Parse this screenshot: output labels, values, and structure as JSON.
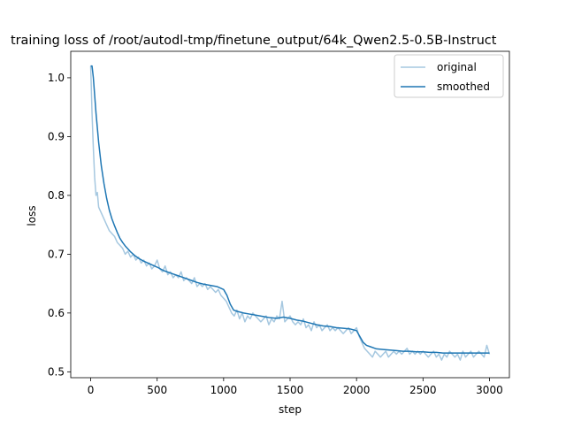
{
  "chart_data": {
    "type": "line",
    "title": "training loss of /root/autodl-tmp/finetune_output/64k_Qwen2.5-0.5B-Instruct",
    "xlabel": "step",
    "ylabel": "loss",
    "xlim": [
      -150,
      3150
    ],
    "ylim": [
      0.49,
      1.045
    ],
    "x_ticks": [
      0,
      500,
      1000,
      1500,
      2000,
      2500,
      3000
    ],
    "x_tick_labels": [
      "0",
      "500",
      "1000",
      "1500",
      "2000",
      "2500",
      "3000"
    ],
    "y_ticks": [
      0.5,
      0.6,
      0.7,
      0.8,
      0.9,
      1.0
    ],
    "y_tick_labels": [
      "0.5",
      "0.6",
      "0.7",
      "0.8",
      "0.9",
      "1.0"
    ],
    "grid": false,
    "legend_position": "top-right",
    "series": [
      {
        "name": "original",
        "color": "#a6c8e0",
        "x": [
          0,
          10,
          20,
          30,
          40,
          50,
          60,
          80,
          100,
          120,
          140,
          160,
          180,
          200,
          220,
          240,
          260,
          280,
          300,
          320,
          340,
          360,
          380,
          400,
          420,
          440,
          460,
          480,
          500,
          520,
          540,
          560,
          580,
          600,
          620,
          640,
          660,
          680,
          700,
          720,
          740,
          760,
          780,
          800,
          820,
          840,
          860,
          880,
          900,
          920,
          940,
          960,
          980,
          1000,
          1020,
          1040,
          1060,
          1080,
          1100,
          1120,
          1140,
          1160,
          1180,
          1200,
          1220,
          1240,
          1260,
          1280,
          1300,
          1320,
          1340,
          1360,
          1380,
          1400,
          1420,
          1440,
          1460,
          1480,
          1500,
          1520,
          1540,
          1560,
          1580,
          1600,
          1620,
          1640,
          1660,
          1680,
          1700,
          1720,
          1740,
          1760,
          1780,
          1800,
          1820,
          1840,
          1860,
          1880,
          1900,
          1920,
          1940,
          1960,
          1980,
          2000,
          2020,
          2040,
          2060,
          2080,
          2100,
          2120,
          2140,
          2160,
          2180,
          2200,
          2220,
          2240,
          2260,
          2280,
          2300,
          2320,
          2340,
          2360,
          2380,
          2400,
          2420,
          2440,
          2460,
          2480,
          2500,
          2520,
          2540,
          2560,
          2580,
          2600,
          2620,
          2640,
          2660,
          2680,
          2700,
          2720,
          2740,
          2760,
          2780,
          2800,
          2820,
          2840,
          2860,
          2880,
          2900,
          2920,
          2940,
          2960,
          2980,
          3000
        ],
        "y": [
          1.02,
          0.94,
          0.88,
          0.83,
          0.8,
          0.805,
          0.78,
          0.77,
          0.76,
          0.75,
          0.74,
          0.735,
          0.73,
          0.72,
          0.715,
          0.71,
          0.7,
          0.705,
          0.695,
          0.7,
          0.69,
          0.695,
          0.685,
          0.69,
          0.68,
          0.685,
          0.675,
          0.68,
          0.69,
          0.675,
          0.67,
          0.68,
          0.665,
          0.67,
          0.66,
          0.665,
          0.66,
          0.67,
          0.655,
          0.66,
          0.655,
          0.65,
          0.66,
          0.645,
          0.65,
          0.645,
          0.65,
          0.64,
          0.645,
          0.64,
          0.635,
          0.64,
          0.63,
          0.625,
          0.62,
          0.61,
          0.6,
          0.595,
          0.605,
          0.59,
          0.6,
          0.585,
          0.595,
          0.59,
          0.6,
          0.595,
          0.59,
          0.585,
          0.59,
          0.595,
          0.58,
          0.59,
          0.585,
          0.595,
          0.59,
          0.62,
          0.585,
          0.59,
          0.595,
          0.585,
          0.58,
          0.585,
          0.58,
          0.59,
          0.575,
          0.58,
          0.57,
          0.585,
          0.575,
          0.58,
          0.57,
          0.575,
          0.58,
          0.57,
          0.575,
          0.57,
          0.575,
          0.57,
          0.565,
          0.57,
          0.575,
          0.565,
          0.57,
          0.575,
          0.56,
          0.55,
          0.54,
          0.535,
          0.53,
          0.525,
          0.535,
          0.53,
          0.525,
          0.53,
          0.535,
          0.525,
          0.53,
          0.535,
          0.53,
          0.535,
          0.53,
          0.535,
          0.54,
          0.53,
          0.535,
          0.53,
          0.535,
          0.53,
          0.535,
          0.53,
          0.525,
          0.53,
          0.535,
          0.525,
          0.53,
          0.52,
          0.53,
          0.525,
          0.535,
          0.53,
          0.525,
          0.53,
          0.52,
          0.535,
          0.525,
          0.53,
          0.535,
          0.525,
          0.53,
          0.535,
          0.53,
          0.525,
          0.545,
          0.53
        ]
      },
      {
        "name": "smoothed",
        "color": "#1f77b4",
        "x": [
          0,
          10,
          20,
          40,
          60,
          80,
          100,
          120,
          140,
          160,
          180,
          200,
          220,
          240,
          260,
          280,
          300,
          330,
          360,
          400,
          450,
          500,
          550,
          600,
          650,
          700,
          750,
          800,
          850,
          900,
          950,
          1000,
          1025,
          1050,
          1075,
          1100,
          1150,
          1200,
          1250,
          1300,
          1350,
          1400,
          1450,
          1500,
          1550,
          1600,
          1650,
          1700,
          1750,
          1800,
          1850,
          1900,
          1950,
          2000,
          2025,
          2050,
          2075,
          2100,
          2150,
          2200,
          2250,
          2300,
          2350,
          2400,
          2450,
          2500,
          2550,
          2600,
          2650,
          2700,
          2750,
          2800,
          2850,
          2900,
          2950,
          3000
        ],
        "y": [
          1.02,
          1.02,
          1.0,
          0.94,
          0.89,
          0.85,
          0.82,
          0.795,
          0.775,
          0.76,
          0.748,
          0.737,
          0.727,
          0.72,
          0.714,
          0.709,
          0.704,
          0.698,
          0.693,
          0.688,
          0.683,
          0.678,
          0.672,
          0.668,
          0.664,
          0.66,
          0.656,
          0.652,
          0.649,
          0.647,
          0.645,
          0.64,
          0.63,
          0.615,
          0.605,
          0.603,
          0.6,
          0.598,
          0.596,
          0.594,
          0.592,
          0.591,
          0.593,
          0.591,
          0.588,
          0.586,
          0.583,
          0.58,
          0.578,
          0.577,
          0.575,
          0.574,
          0.573,
          0.57,
          0.56,
          0.55,
          0.545,
          0.543,
          0.539,
          0.538,
          0.537,
          0.536,
          0.535,
          0.535,
          0.534,
          0.534,
          0.533,
          0.533,
          0.532,
          0.532,
          0.532,
          0.532,
          0.532,
          0.532,
          0.532,
          0.532
        ]
      }
    ]
  }
}
